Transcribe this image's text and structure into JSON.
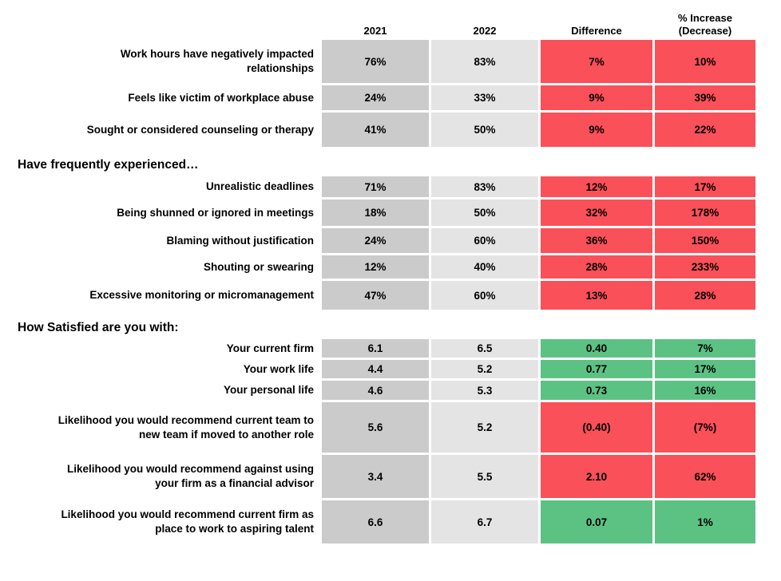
{
  "chart_data": {
    "type": "table",
    "columns": [
      "2021",
      "2022",
      "Difference",
      "% Increase (Decrease)"
    ],
    "sections": [
      {
        "title": "",
        "rows": [
          {
            "label": "Work hours have negatively impacted\nrelationships",
            "values": [
              "76%",
              "83%",
              "7%",
              "10%"
            ],
            "trend": "negative"
          },
          {
            "label": "Feels like victim of workplace abuse",
            "values": [
              "24%",
              "33%",
              "9%",
              "39%"
            ],
            "trend": "negative"
          },
          {
            "label": "Sought or considered counseling or therapy",
            "values": [
              "41%",
              "50%",
              "9%",
              "22%"
            ],
            "trend": "negative"
          }
        ]
      },
      {
        "title": "Have frequently experienced…",
        "rows": [
          {
            "label": "Unrealistic deadlines",
            "values": [
              "71%",
              "83%",
              "12%",
              "17%"
            ],
            "trend": "negative"
          },
          {
            "label": "Being shunned or ignored in meetings",
            "values": [
              "18%",
              "50%",
              "32%",
              "178%"
            ],
            "trend": "negative"
          },
          {
            "label": "Blaming without justification",
            "values": [
              "24%",
              "60%",
              "36%",
              "150%"
            ],
            "trend": "negative"
          },
          {
            "label": "Shouting or swearing",
            "values": [
              "12%",
              "40%",
              "28%",
              "233%"
            ],
            "trend": "negative"
          },
          {
            "label": "Excessive monitoring or micromanagement",
            "values": [
              "47%",
              "60%",
              "13%",
              "28%"
            ],
            "trend": "negative"
          }
        ]
      },
      {
        "title": "How Satisfied are you with:",
        "rows": [
          {
            "label": "Your current firm",
            "values": [
              "6.1",
              "6.5",
              "0.40",
              "7%"
            ],
            "trend": "positive"
          },
          {
            "label": "Your work life",
            "values": [
              "4.4",
              "5.2",
              "0.77",
              "17%"
            ],
            "trend": "positive"
          },
          {
            "label": "Your personal life",
            "values": [
              "4.6",
              "5.3",
              "0.73",
              "16%"
            ],
            "trend": "positive"
          },
          {
            "label": "Likelihood you would recommend current team to\nnew team if moved to another role",
            "values": [
              "5.6",
              "5.2",
              "(0.40)",
              "(7%)"
            ],
            "trend": "negative"
          },
          {
            "label": "Likelihood you would recommend against using\nyour firm as a financial advisor",
            "values": [
              "3.4",
              "5.5",
              "2.10",
              "62%"
            ],
            "trend": "negative"
          },
          {
            "label": "Likelihood you would recommend current firm as\nplace to work to aspiring talent",
            "values": [
              "6.6",
              "6.7",
              "0.07",
              "1%"
            ],
            "trend": "positive"
          }
        ]
      }
    ]
  },
  "colors": {
    "negative": "#FA5059",
    "positive": "#5CC284",
    "col_2021": "#CBCBCB",
    "col_2022": "#E4E4E4"
  }
}
